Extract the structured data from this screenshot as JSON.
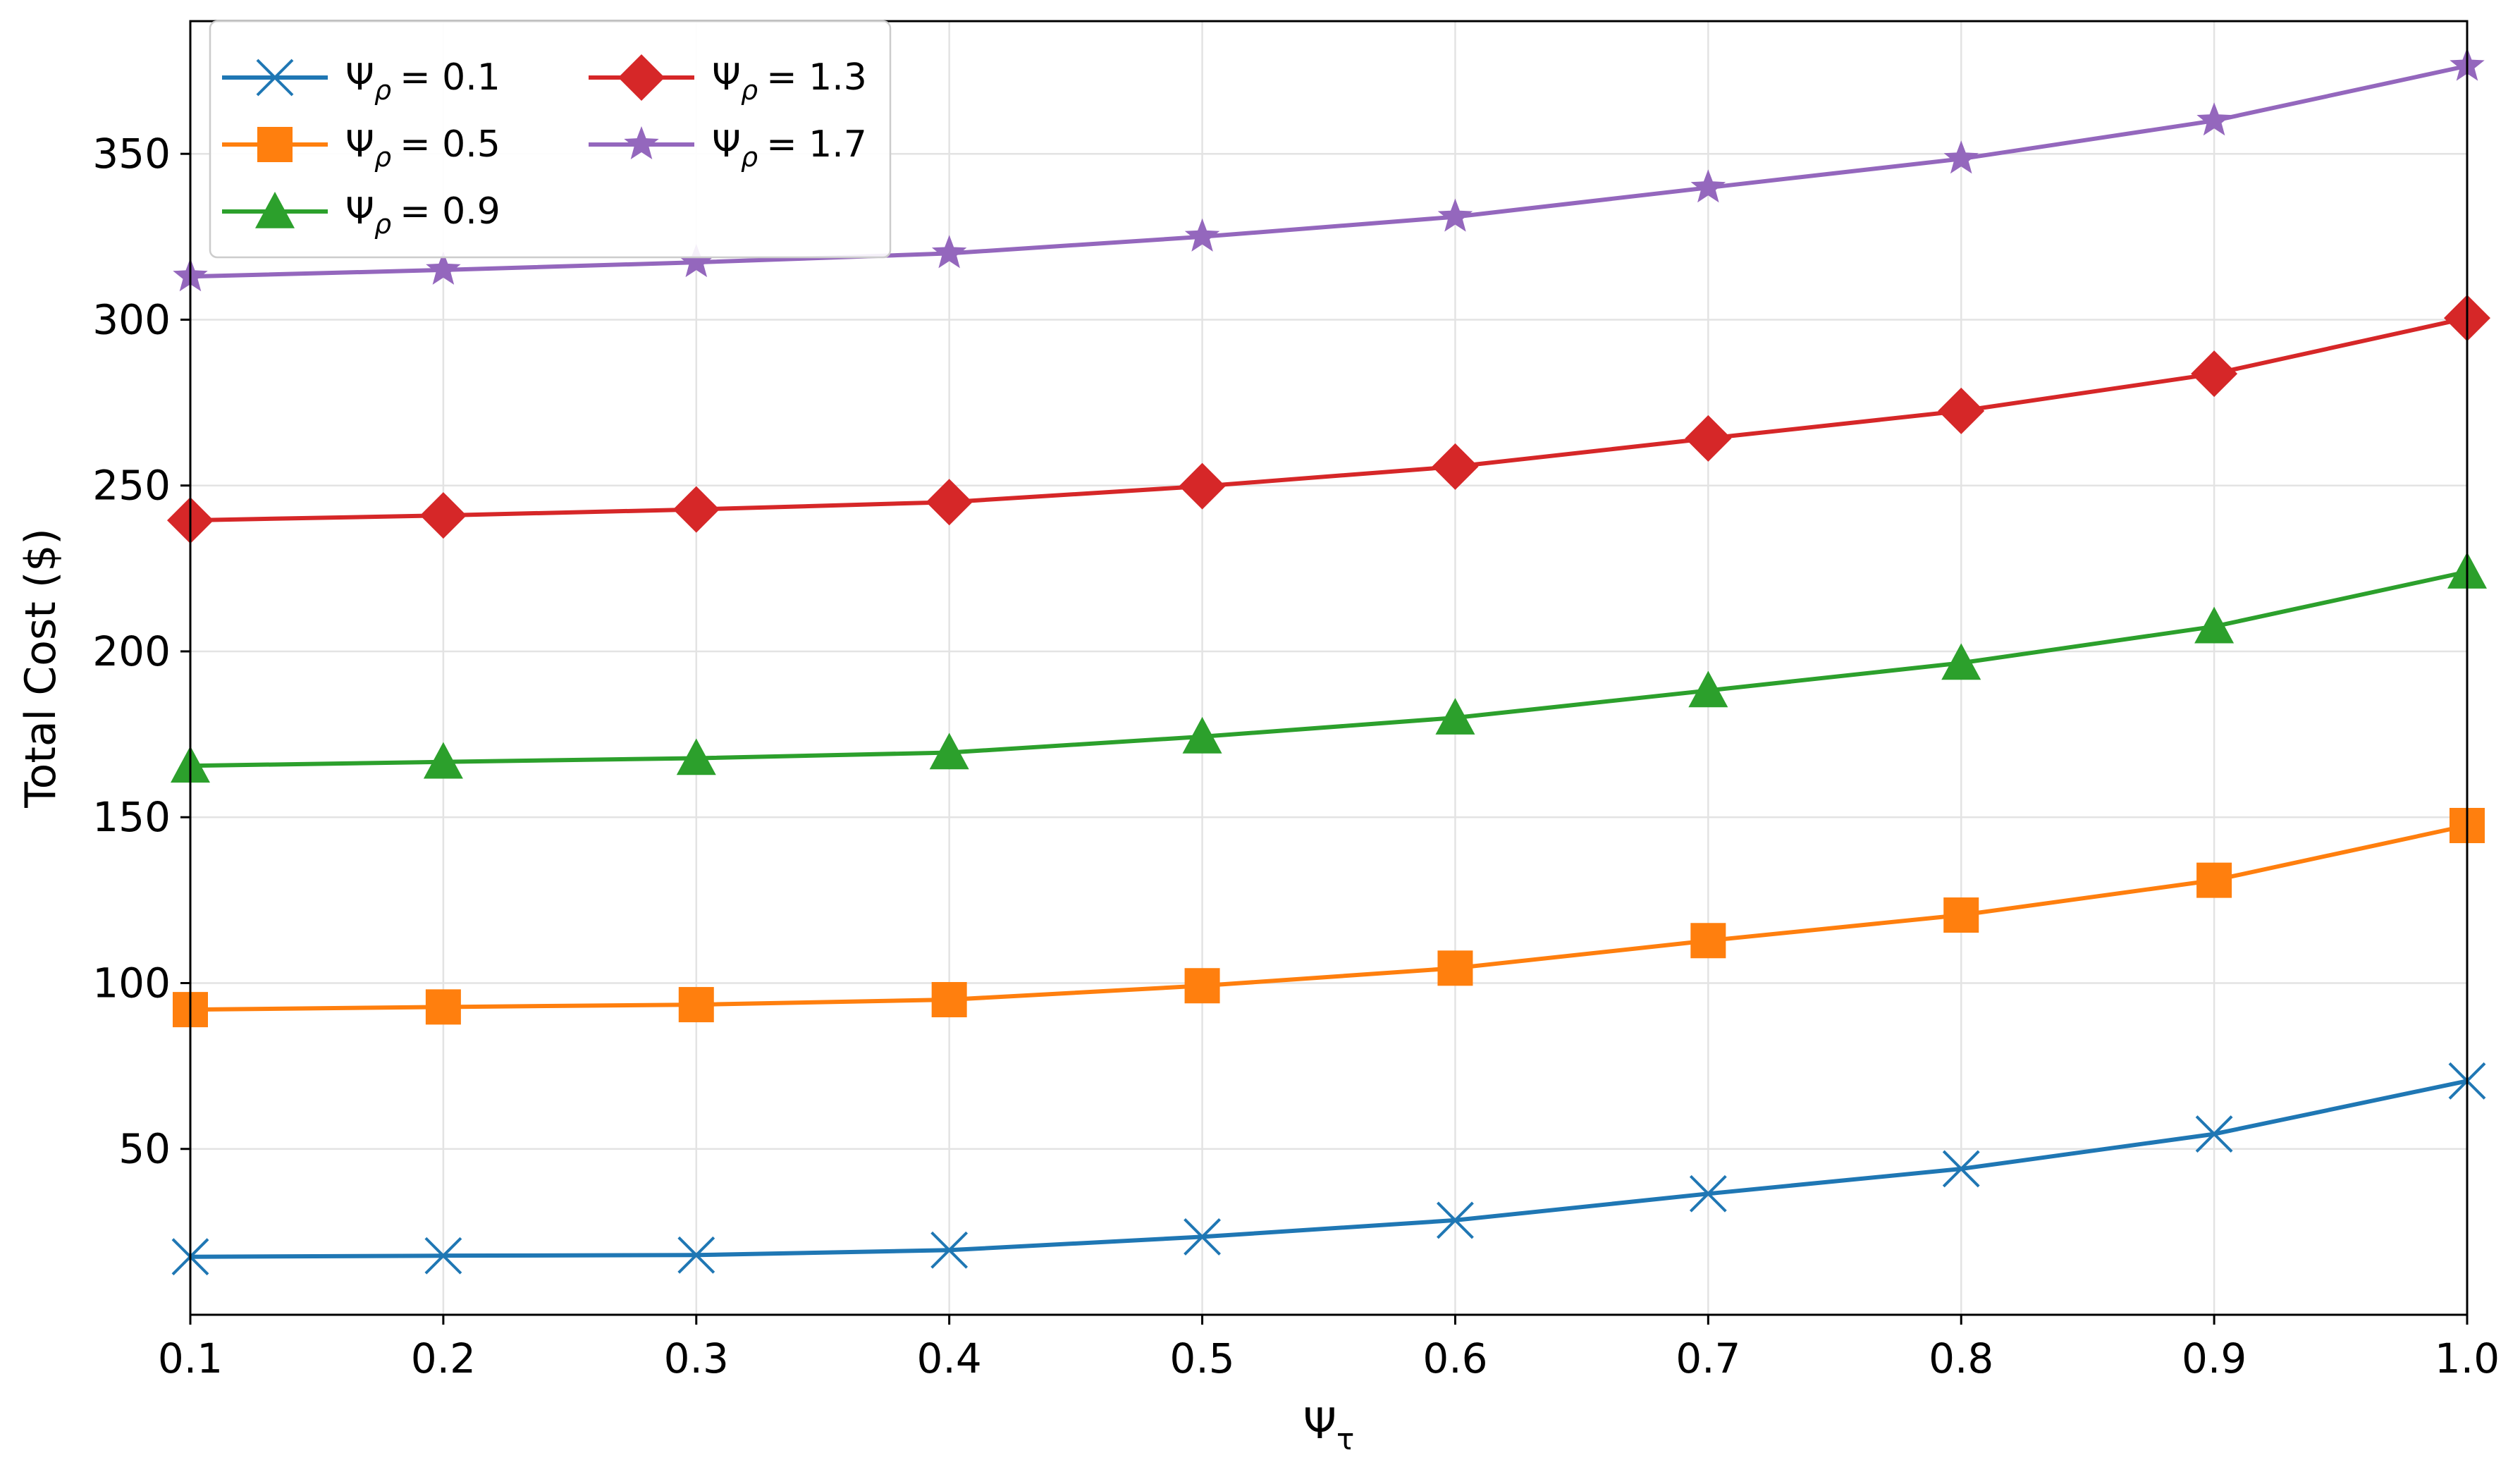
{
  "chart_data": {
    "type": "line",
    "title": "",
    "xlabel": "Ψ",
    "xlabel_sub": "τ",
    "ylabel": "Total Cost ($)",
    "xlim": [
      0.1,
      1.0
    ],
    "ylim": [
      0,
      390
    ],
    "grid": true,
    "legend_position": "top-left",
    "legend_symbol": "Ψ",
    "legend_sub": "ρ",
    "x": [
      0.1,
      0.2,
      0.3,
      0.4,
      0.5,
      0.6,
      0.7,
      0.8,
      0.9,
      1.0
    ],
    "x_tick_labels": [
      "0.1",
      "0.2",
      "0.3",
      "0.4",
      "0.5",
      "0.6",
      "0.7",
      "0.8",
      "0.9",
      "1.0"
    ],
    "y_ticks": [
      50,
      100,
      150,
      200,
      250,
      300,
      350
    ],
    "y_tick_labels": [
      "50",
      "100",
      "150",
      "200",
      "250",
      "300",
      "350"
    ],
    "series": [
      {
        "name": "0.1",
        "label": "= 0.1",
        "color": "#1f77b4",
        "marker": "x",
        "values": [
          17.5,
          17.8,
          18.0,
          19.5,
          23.5,
          28.5,
          36.5,
          44.0,
          54.5,
          70.5
        ]
      },
      {
        "name": "0.5",
        "label": "= 0.5",
        "color": "#ff7f0e",
        "marker": "square",
        "values": [
          92.0,
          92.8,
          93.5,
          95.0,
          99.2,
          104.5,
          112.8,
          120.5,
          131.0,
          147.5
        ]
      },
      {
        "name": "0.9",
        "label": "= 0.9",
        "color": "#2ca02c",
        "marker": "triangle",
        "values": [
          165.5,
          166.7,
          167.8,
          169.5,
          174.3,
          180.0,
          188.2,
          196.5,
          207.5,
          224.0
        ]
      },
      {
        "name": "1.3",
        "label": "= 1.3",
        "color": "#d62728",
        "marker": "diamond",
        "values": [
          239.5,
          241.0,
          242.8,
          245.0,
          249.8,
          255.7,
          264.2,
          272.5,
          283.7,
          300.5
        ]
      },
      {
        "name": "1.7",
        "label": "= 1.7",
        "color": "#9467bd",
        "marker": "star",
        "values": [
          313.0,
          315.0,
          317.3,
          320.0,
          325.0,
          331.0,
          339.8,
          348.5,
          360.0,
          376.5
        ]
      }
    ]
  }
}
